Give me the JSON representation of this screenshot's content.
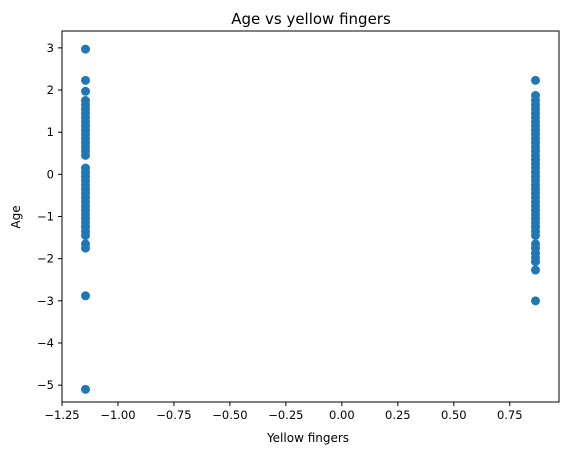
{
  "chart_data": {
    "type": "scatter",
    "title": "Age vs yellow fingers",
    "xlabel": "Yellow fingers",
    "ylabel": "Age",
    "xlim": [
      -1.25,
      0.97
    ],
    "ylim": [
      -5.4,
      3.4
    ],
    "xticks": [
      -1.25,
      -1.0,
      -0.75,
      -0.5,
      -0.25,
      0.0,
      0.25,
      0.5,
      0.75
    ],
    "xtick_labels": [
      "−1.25",
      "−1.00",
      "−0.75",
      "−0.50",
      "−0.25",
      "0.00",
      "0.25",
      "0.50",
      "0.75"
    ],
    "yticks": [
      -5,
      -4,
      -3,
      -2,
      -1,
      0,
      1,
      2,
      3
    ],
    "ytick_labels": [
      "−5",
      "−4",
      "−3",
      "−2",
      "−1",
      "0",
      "1",
      "2",
      "3"
    ],
    "grid": false,
    "marker_color": "#1f77b4",
    "series": [
      {
        "x_value": -1.145,
        "y": [
          2.97,
          2.23,
          1.97,
          1.75,
          1.65,
          1.55,
          1.45,
          1.35,
          1.25,
          1.15,
          1.05,
          0.95,
          0.85,
          0.75,
          0.65,
          0.55,
          0.45,
          0.15,
          0.05,
          -0.05,
          -0.15,
          -0.25,
          -0.35,
          -0.45,
          -0.55,
          -0.65,
          -0.75,
          -0.85,
          -0.95,
          -1.05,
          -1.15,
          -1.25,
          -1.35,
          -1.45,
          -1.65,
          -1.75,
          -2.88,
          -5.1
        ]
      },
      {
        "x_value": 0.865,
        "y": [
          2.23,
          1.87,
          1.75,
          1.65,
          1.55,
          1.45,
          1.35,
          1.25,
          1.15,
          1.05,
          0.95,
          0.85,
          0.75,
          0.65,
          0.55,
          0.45,
          0.35,
          0.25,
          0.15,
          0.05,
          -0.05,
          -0.15,
          -0.25,
          -0.35,
          -0.45,
          -0.55,
          -0.65,
          -0.75,
          -0.85,
          -0.95,
          -1.05,
          -1.15,
          -1.25,
          -1.35,
          -1.45,
          -1.65,
          -1.75,
          -1.87,
          -1.97,
          -2.07,
          -2.27,
          -3.0
        ]
      }
    ]
  }
}
